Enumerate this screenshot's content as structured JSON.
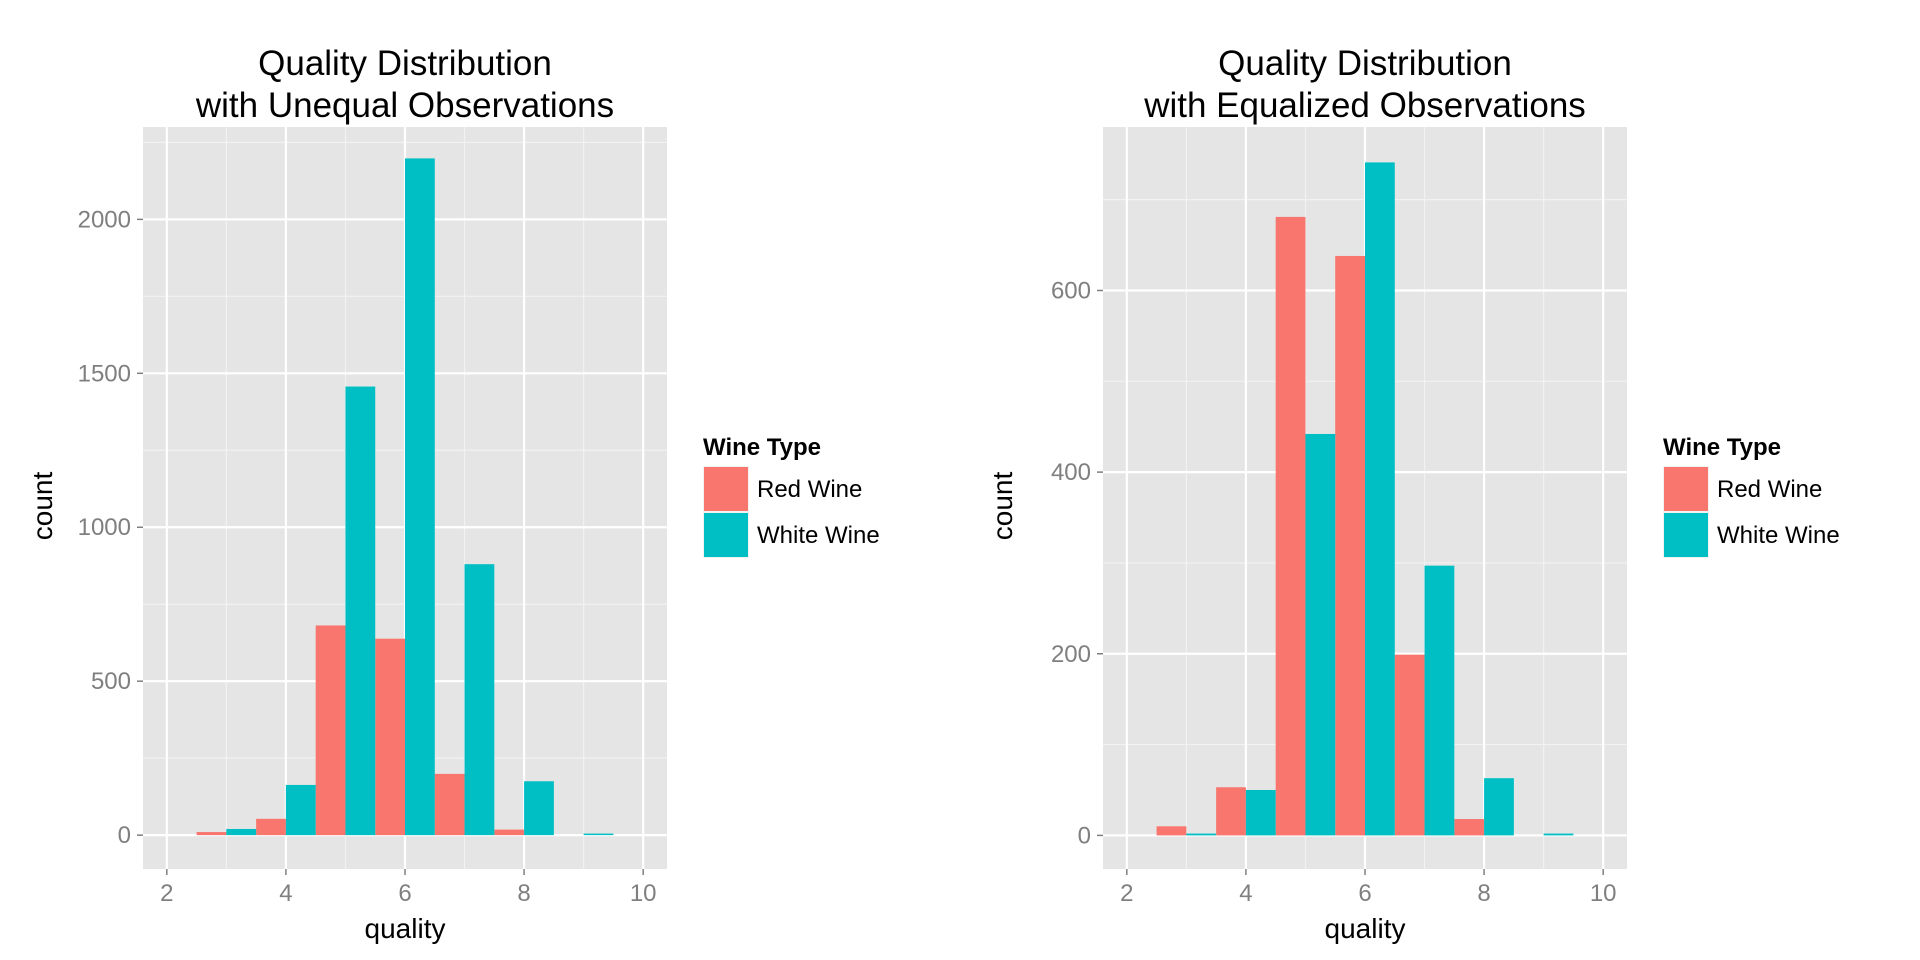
{
  "chart_data": [
    {
      "type": "bar",
      "title": [
        "Quality Distribution",
        "with Unequal Observations"
      ],
      "xlabel": "quality",
      "ylabel": "count",
      "xlim": [
        1.6,
        10.4
      ],
      "ylim": [
        -110,
        2300
      ],
      "x_ticks": [
        2,
        4,
        6,
        8,
        10
      ],
      "x_tick_labels": [
        "2",
        "4",
        "6",
        "8",
        "10"
      ],
      "y_ticks": [
        0,
        500,
        1000,
        1500,
        2000
      ],
      "y_tick_labels": [
        "0",
        "500",
        "1000",
        "1500",
        "2000"
      ],
      "grid": true,
      "legend_position": "right",
      "legend_title": "Wine Type",
      "bar_width": 0.5,
      "series": [
        {
          "name": "Red Wine",
          "color": "#F8766D",
          "x": [
            3,
            4,
            5,
            6,
            7,
            8
          ],
          "values": [
            10,
            53,
            681,
            638,
            199,
            18
          ]
        },
        {
          "name": "White Wine",
          "color": "#00BFC4",
          "x": [
            3,
            4,
            5,
            6,
            7,
            8,
            9
          ],
          "values": [
            20,
            163,
            1457,
            2198,
            880,
            175,
            5
          ]
        }
      ]
    },
    {
      "type": "bar",
      "title": [
        "Quality Distribution",
        "with Equalized Observations"
      ],
      "xlabel": "quality",
      "ylabel": "count",
      "xlim": [
        1.6,
        10.4
      ],
      "ylim": [
        -37,
        780
      ],
      "x_ticks": [
        2,
        4,
        6,
        8,
        10
      ],
      "x_tick_labels": [
        "2",
        "4",
        "6",
        "8",
        "10"
      ],
      "y_ticks": [
        0,
        200,
        400,
        600
      ],
      "y_tick_labels": [
        "0",
        "200",
        "400",
        "600"
      ],
      "grid": true,
      "legend_position": "right",
      "legend_title": "Wine Type",
      "bar_width": 0.5,
      "series": [
        {
          "name": "Red Wine",
          "color": "#F8766D",
          "x": [
            3,
            4,
            5,
            6,
            7,
            8
          ],
          "values": [
            10,
            53,
            681,
            638,
            199,
            18
          ]
        },
        {
          "name": "White Wine",
          "color": "#00BFC4",
          "x": [
            3,
            4,
            5,
            6,
            7,
            8,
            9
          ],
          "values": [
            2,
            50,
            442,
            741,
            297,
            63,
            2
          ]
        }
      ]
    }
  ]
}
